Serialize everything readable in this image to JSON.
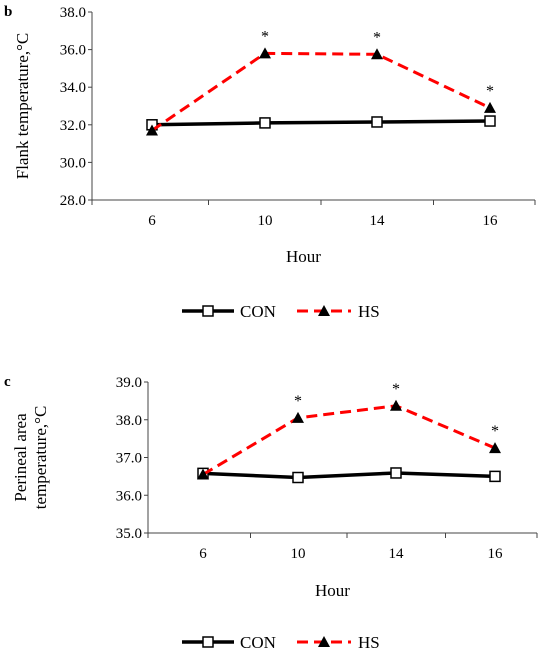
{
  "chart_data": [
    {
      "panel_label": "b",
      "type": "line",
      "xlabel": "Hour",
      "ylabel": "Flank temperature,°C",
      "categories": [
        "6",
        "10",
        "14",
        "16"
      ],
      "ylim": [
        28.0,
        38.0
      ],
      "yticks": [
        "28.0",
        "30.0",
        "32.0",
        "34.0",
        "36.0",
        "38.0"
      ],
      "series": [
        {
          "name": "CON",
          "values": [
            32.0,
            32.1,
            32.15,
            32.2
          ],
          "color": "#000000",
          "marker": "open-square",
          "line": "solid"
        },
        {
          "name": "HS",
          "values": [
            31.7,
            35.8,
            35.75,
            32.9
          ],
          "color": "#ff0000",
          "marker": "filled-triangle",
          "line": "dashed"
        }
      ],
      "annotations": [
        {
          "text": "*",
          "category": "10"
        },
        {
          "text": "*",
          "category": "14"
        },
        {
          "text": "*",
          "category": "16"
        }
      ],
      "legend": "bottom"
    },
    {
      "panel_label": "c",
      "type": "line",
      "xlabel": "Hour",
      "ylabel": [
        "Perineal area",
        "temperature,°C"
      ],
      "categories": [
        "6",
        "10",
        "14",
        "16"
      ],
      "ylim": [
        35.0,
        39.0
      ],
      "yticks": [
        "35.0",
        "36.0",
        "37.0",
        "38.0",
        "39.0"
      ],
      "series": [
        {
          "name": "CON",
          "values": [
            36.58,
            36.47,
            36.59,
            36.5
          ],
          "color": "#000000",
          "marker": "open-square",
          "line": "solid"
        },
        {
          "name": "HS",
          "values": [
            36.55,
            38.05,
            38.37,
            37.25
          ],
          "color": "#ff0000",
          "marker": "filled-triangle",
          "line": "dashed"
        }
      ],
      "annotations": [
        {
          "text": "*",
          "category": "10"
        },
        {
          "text": "*",
          "category": "14"
        },
        {
          "text": "*",
          "category": "16"
        }
      ],
      "legend": "bottom"
    }
  ]
}
